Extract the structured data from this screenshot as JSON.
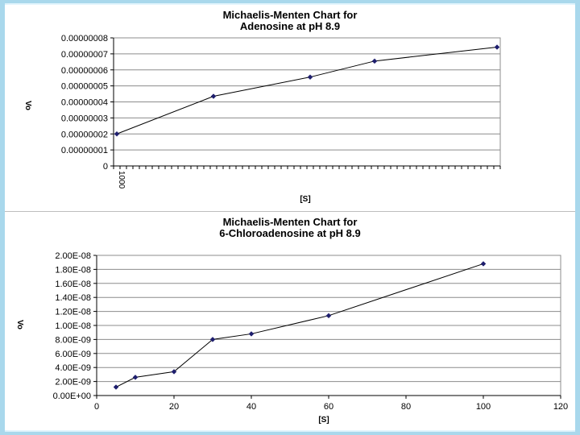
{
  "chart_data": [
    {
      "type": "line",
      "title_line1": "Michaelis-Menten Chart for",
      "title_line2": "Adenosine at pH 8.9",
      "xlabel": "[S]",
      "ylabel": "Vo",
      "x_tick_label": "1000",
      "y_ticks": [
        "0.00000008",
        "0.00000007",
        "0.00000006",
        "0.00000005",
        "0.00000004",
        "0.00000003",
        "0.00000002",
        "0.00000001",
        "0"
      ],
      "ylim": [
        0,
        8e-08
      ],
      "x_category_count": 60,
      "points": [
        {
          "x": 1,
          "y": 2e-08
        },
        {
          "x": 16,
          "y": 4.35e-08
        },
        {
          "x": 31,
          "y": 5.55e-08
        },
        {
          "x": 41,
          "y": 6.55e-08
        },
        {
          "x": 60,
          "y": 7.42e-08
        }
      ],
      "grid": true,
      "marker": "diamond",
      "color": "#1f1f6e"
    },
    {
      "type": "line",
      "title_line1": "Michaelis-Menten Chart for",
      "title_line2": "6-Chloroadenosine at pH 8.9",
      "xlabel": "[S]",
      "ylabel": "Vo",
      "x_ticks": [
        "0",
        "20",
        "40",
        "60",
        "80",
        "100",
        "120"
      ],
      "xlim": [
        0,
        120
      ],
      "y_ticks": [
        "2.00E-08",
        "1.80E-08",
        "1.60E-08",
        "1.40E-08",
        "1.20E-08",
        "1.00E-08",
        "8.00E-09",
        "6.00E-09",
        "4.00E-09",
        "2.00E-09",
        "0.00E+00"
      ],
      "ylim": [
        0,
        2e-08
      ],
      "points": [
        {
          "x": 5,
          "y": 1.2e-09
        },
        {
          "x": 10,
          "y": 2.6e-09
        },
        {
          "x": 20,
          "y": 3.4e-09
        },
        {
          "x": 30,
          "y": 8e-09
        },
        {
          "x": 40,
          "y": 8.8e-09
        },
        {
          "x": 60,
          "y": 1.14e-08
        },
        {
          "x": 100,
          "y": 1.88e-08
        }
      ],
      "grid": true,
      "marker": "diamond",
      "color": "#1f1f6e"
    }
  ]
}
